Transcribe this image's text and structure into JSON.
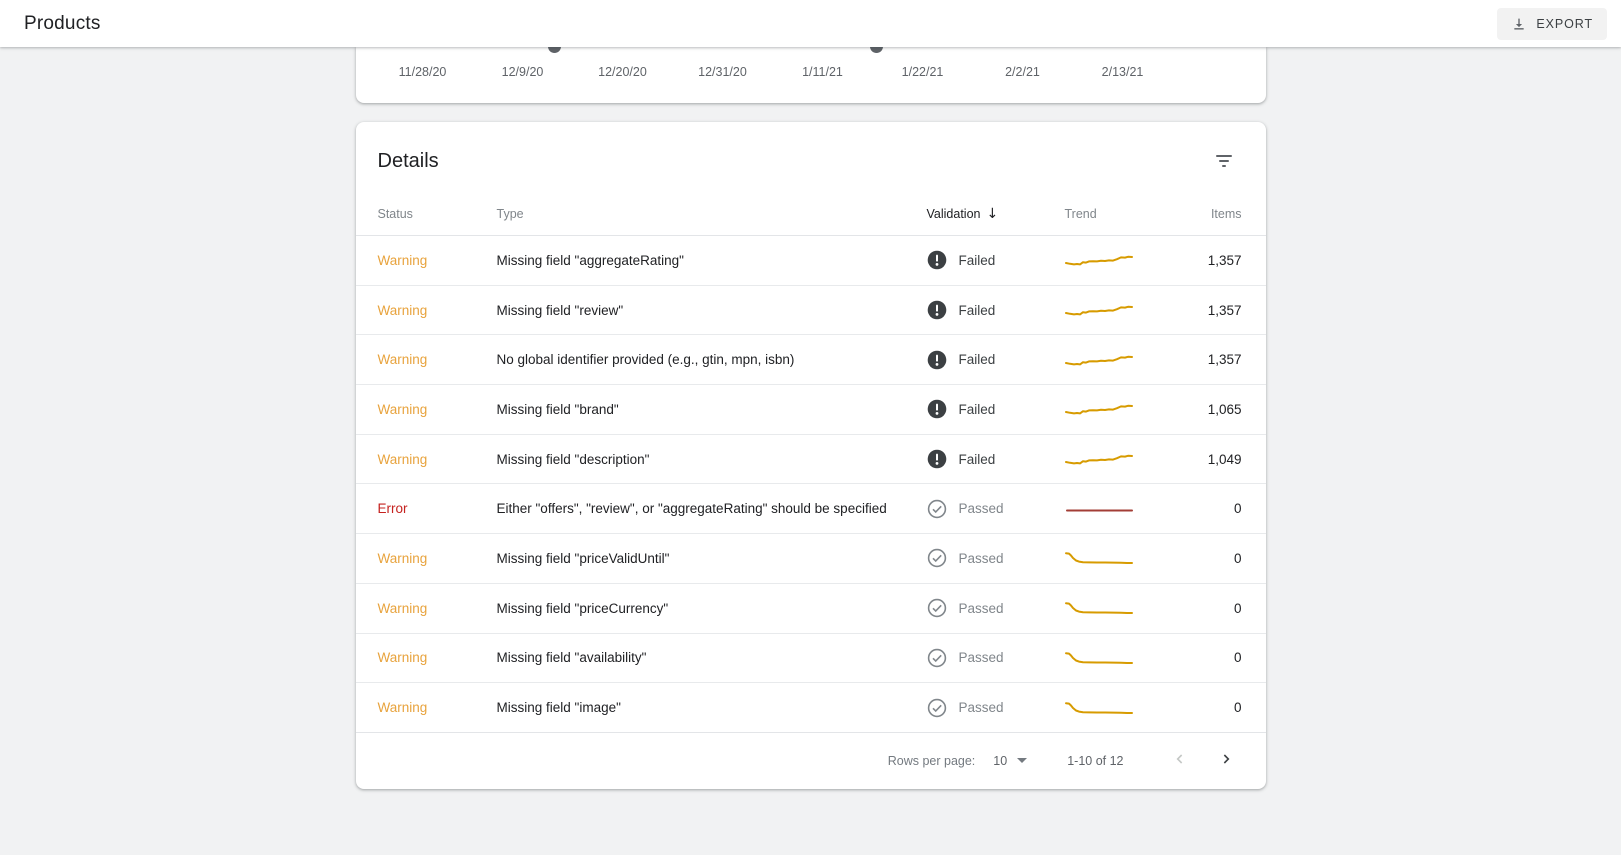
{
  "topbar": {
    "title": "Products",
    "export_label": "EXPORT"
  },
  "chart_card": {
    "x_labels": [
      "11/28/20",
      "12/9/20",
      "12/20/20",
      "12/31/20",
      "1/11/21",
      "1/22/21",
      "2/2/21",
      "2/13/21"
    ],
    "marker_positions_pct": [
      21.1,
      56.5
    ]
  },
  "details": {
    "title": "Details",
    "columns": {
      "status": "Status",
      "type": "Type",
      "validation": "Validation",
      "trend": "Trend",
      "items": "Items"
    },
    "sort_arrow": "↓",
    "rows": [
      {
        "status": "Warning",
        "kind": "warning",
        "type": "Missing field \"aggregateRating\"",
        "validation": "Failed",
        "vstate": "failed",
        "trend": "rise",
        "items": "1,357"
      },
      {
        "status": "Warning",
        "kind": "warning",
        "type": "Missing field \"review\"",
        "validation": "Failed",
        "vstate": "failed",
        "trend": "rise",
        "items": "1,357"
      },
      {
        "status": "Warning",
        "kind": "warning",
        "type": "No global identifier provided (e.g., gtin, mpn, isbn)",
        "validation": "Failed",
        "vstate": "failed",
        "trend": "rise",
        "items": "1,357"
      },
      {
        "status": "Warning",
        "kind": "warning",
        "type": "Missing field \"brand\"",
        "validation": "Failed",
        "vstate": "failed",
        "trend": "rise",
        "items": "1,065"
      },
      {
        "status": "Warning",
        "kind": "warning",
        "type": "Missing field \"description\"",
        "validation": "Failed",
        "vstate": "failed",
        "trend": "rise",
        "items": "1,049"
      },
      {
        "status": "Error",
        "kind": "error",
        "type": "Either \"offers\", \"review\", or \"aggregateRating\" should be specified",
        "validation": "Passed",
        "vstate": "passed",
        "trend": "flat",
        "items": "0"
      },
      {
        "status": "Warning",
        "kind": "warning",
        "type": "Missing field \"priceValidUntil\"",
        "validation": "Passed",
        "vstate": "passed",
        "trend": "drop",
        "items": "0"
      },
      {
        "status": "Warning",
        "kind": "warning",
        "type": "Missing field \"priceCurrency\"",
        "validation": "Passed",
        "vstate": "passed",
        "trend": "drop",
        "items": "0"
      },
      {
        "status": "Warning",
        "kind": "warning",
        "type": "Missing field \"availability\"",
        "validation": "Passed",
        "vstate": "passed",
        "trend": "drop",
        "items": "0"
      },
      {
        "status": "Warning",
        "kind": "warning",
        "type": "Missing field \"image\"",
        "validation": "Passed",
        "vstate": "passed",
        "trend": "drop",
        "items": "0"
      }
    ],
    "pagination": {
      "rows_per_page_label": "Rows per page:",
      "rows_per_page_value": "10",
      "range_label": "1-10 of 12"
    }
  },
  "sparklines": {
    "rise": "1,12 5,12.8 9,13.4 12,13 15,13.4 18,11.2 21,11.6 24,10.4 28,10.2 32,10.4 36,9.8 40,10 44,9.4 48,9.6 52,8.2 56,6.4 60,6.6 63,5.8 67,6",
    "drop": "1,4.2 4,4.6 6,6.5 8,9 11,11.5 14,12.6 18,13.2 24,13.4 32,13.5 40,13.5 48,13.6 56,13.8 62,14 67,14",
    "flat": "2,10.5 67,10.5"
  },
  "colors": {
    "warning": "#e8a33d",
    "error": "#c5221f",
    "trend_warning": "#d79b00",
    "trend_error": "#a33e36",
    "marker": "#5f6368"
  }
}
